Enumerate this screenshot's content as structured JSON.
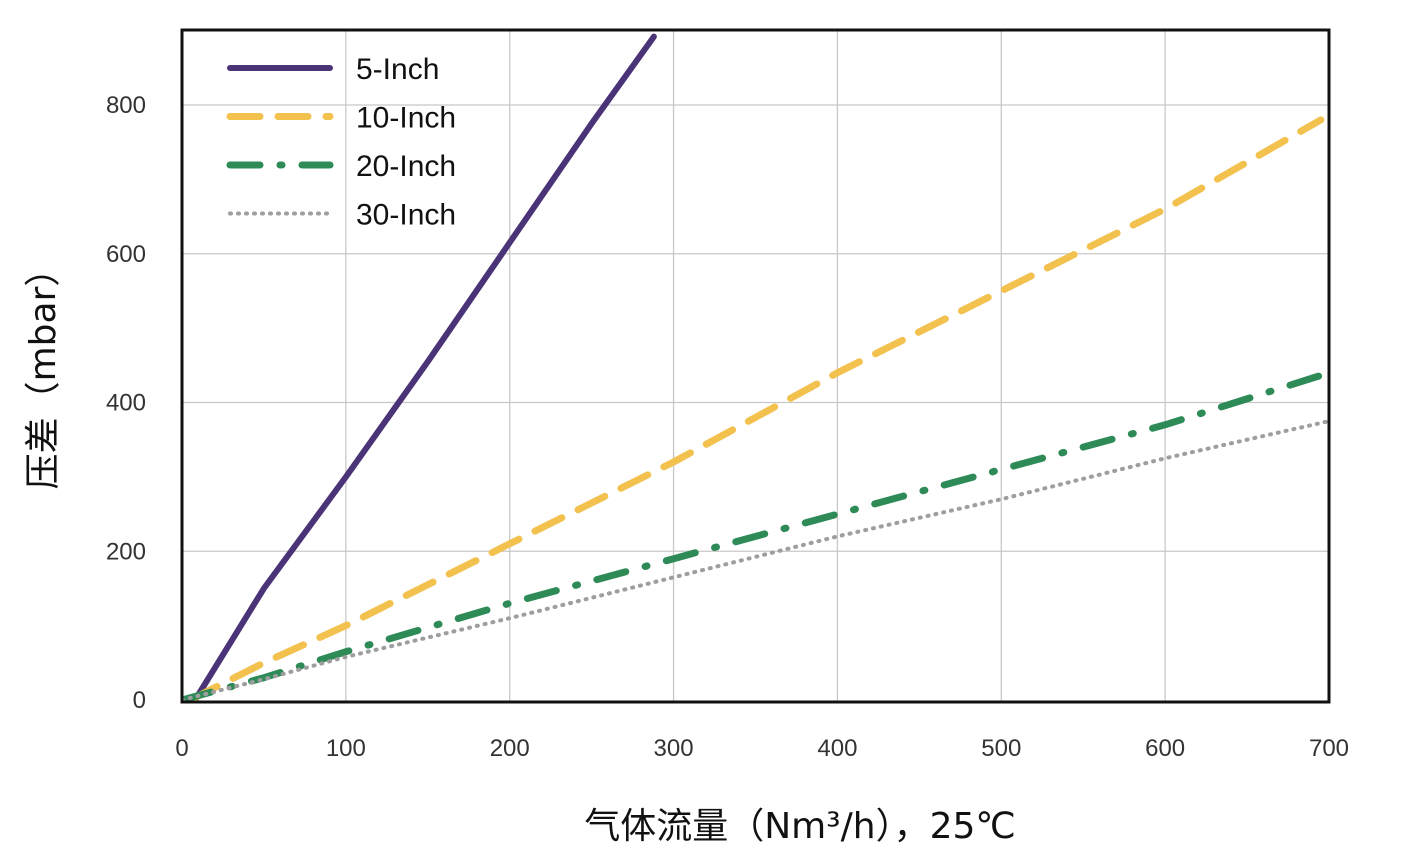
{
  "chart_data": {
    "type": "line",
    "title": "",
    "xlabel": "气体流量（Nm³/h），25℃",
    "ylabel": "压差（mbar）",
    "xlim": [
      0,
      700
    ],
    "ylim": [
      0,
      800
    ],
    "xticks": [
      "0",
      "100",
      "200",
      "300",
      "400",
      "500",
      "600",
      "700"
    ],
    "yticks": [
      "0",
      "200",
      "400",
      "600",
      "800"
    ],
    "grid": true,
    "legend_position": "top-left",
    "series": [
      {
        "name": "5-Inch",
        "color": "#4b3378",
        "style": "solid",
        "x": [
          8,
          50,
          100,
          150,
          200,
          250,
          288
        ],
        "y": [
          0,
          150,
          300,
          455,
          615,
          775,
          892
        ]
      },
      {
        "name": "10-Inch",
        "color": "#f2c14e",
        "style": "dashed",
        "x": [
          5,
          50,
          100,
          200,
          300,
          400,
          500,
          600,
          695
        ],
        "y": [
          0,
          50,
          100,
          210,
          320,
          440,
          550,
          660,
          780
        ]
      },
      {
        "name": "20-Inch",
        "color": "#2e8b57",
        "style": "dash-dot",
        "x": [
          0,
          50,
          100,
          200,
          300,
          400,
          500,
          600,
          700
        ],
        "y": [
          0,
          30,
          65,
          130,
          190,
          250,
          310,
          370,
          440
        ]
      },
      {
        "name": "30-Inch",
        "color": "#9e9e9e",
        "style": "dotted",
        "x": [
          0,
          50,
          100,
          200,
          300,
          400,
          500,
          600,
          700
        ],
        "y": [
          0,
          28,
          58,
          110,
          165,
          220,
          270,
          325,
          375
        ]
      }
    ]
  }
}
